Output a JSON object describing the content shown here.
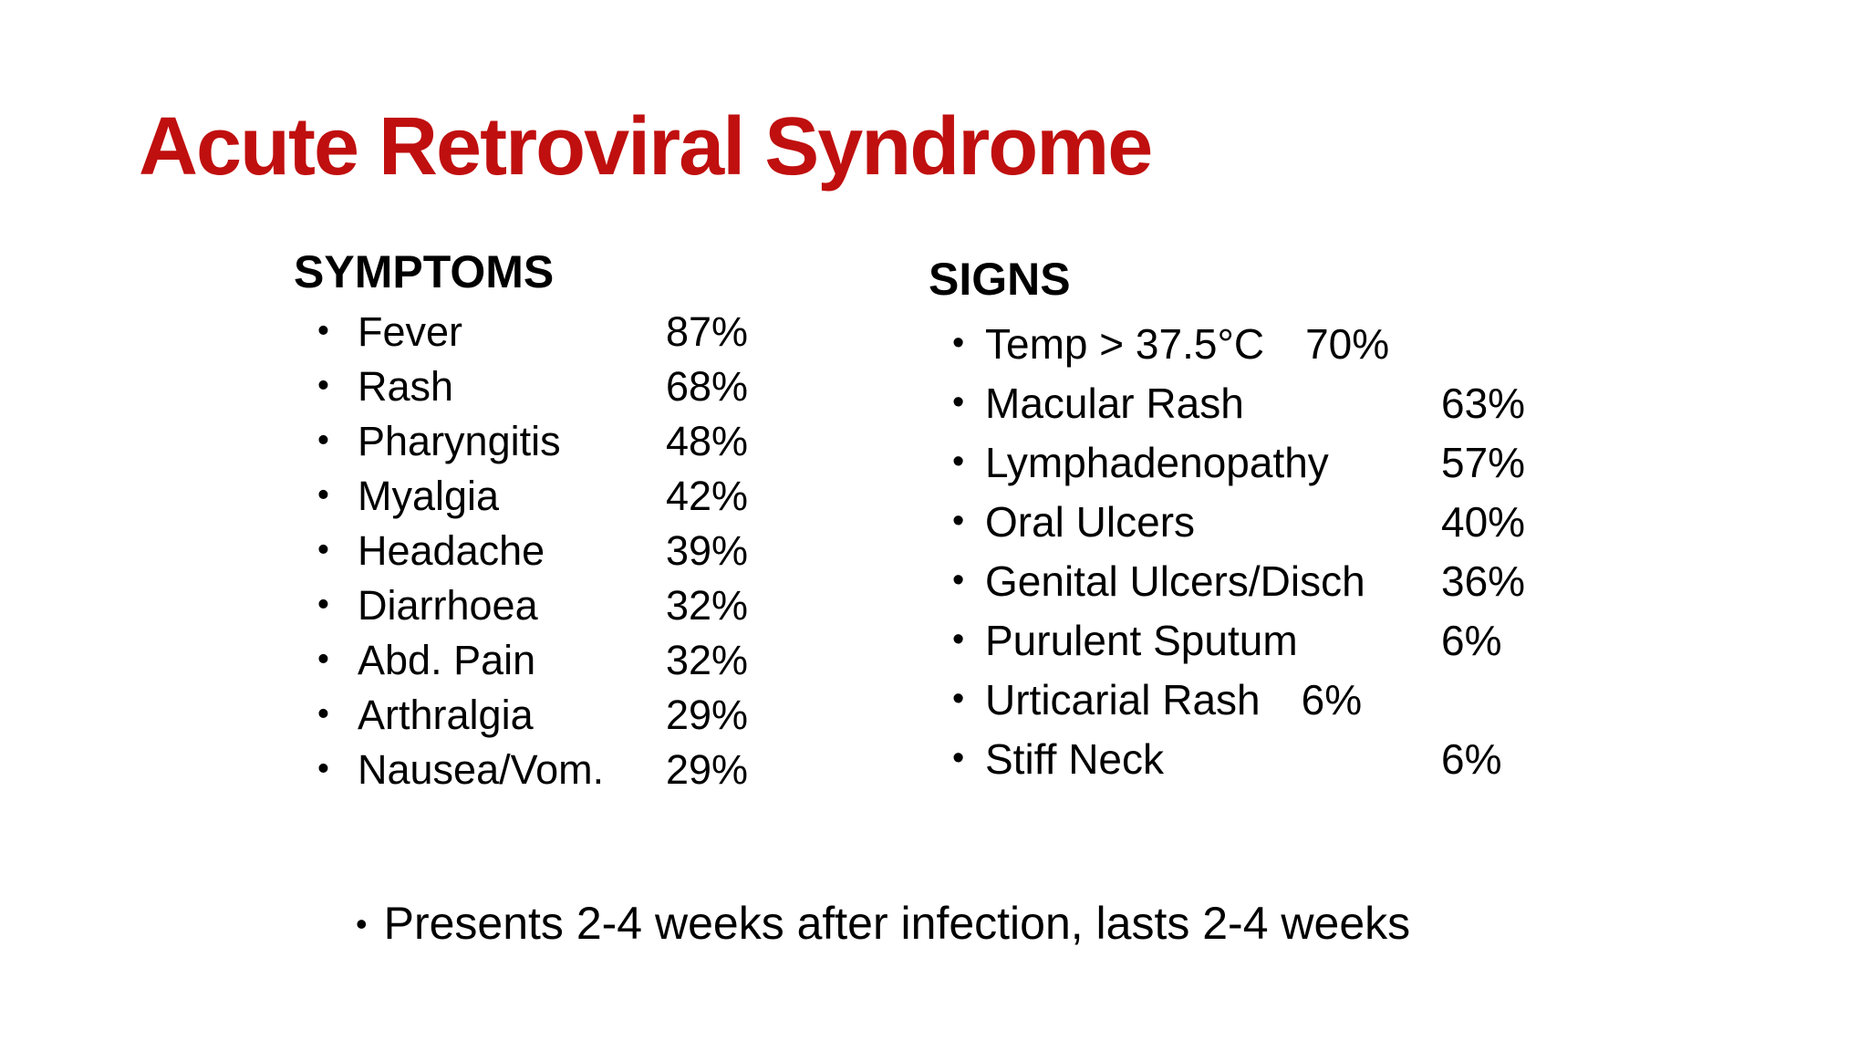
{
  "background_color": "#ffffff",
  "text_color": "#000000",
  "bullet_glyph": "•",
  "title": {
    "text": "Acute Retroviral Syndrome",
    "color": "#c00f0f"
  },
  "symptoms": {
    "header": "SYMPTOMS",
    "items": [
      {
        "label": "Fever",
        "value": "87%"
      },
      {
        "label": "Rash",
        "value": "68%"
      },
      {
        "label": "Pharyngitis",
        "value": "48%"
      },
      {
        "label": "Myalgia",
        "value": "42%"
      },
      {
        "label": "Headache",
        "value": "39%"
      },
      {
        "label": "Diarrhoea",
        "value": "32%"
      },
      {
        "label": "Abd. Pain",
        "value": "32%"
      },
      {
        "label": "Arthralgia",
        "value": "29%"
      },
      {
        "label": "Nausea/Vom.",
        "value": "29%"
      }
    ]
  },
  "signs": {
    "header": "SIGNS",
    "items": [
      {
        "label": "Temp > 37.5°C",
        "value": "70%",
        "value_inline": true
      },
      {
        "label": "Macular Rash",
        "value": "63%"
      },
      {
        "label": "Lymphadenopathy",
        "value": "57%"
      },
      {
        "label": "Oral Ulcers",
        "value": "40%"
      },
      {
        "label": "Genital Ulcers/Disch",
        "value": "36%"
      },
      {
        "label": "Purulent Sputum",
        "value": "6%"
      },
      {
        "label": "Urticarial Rash",
        "value": "6%",
        "value_inline": true
      },
      {
        "label": "Stiff Neck",
        "value": "6%"
      }
    ]
  },
  "footnote": "Presents 2-4 weeks after infection, lasts 2-4 weeks"
}
